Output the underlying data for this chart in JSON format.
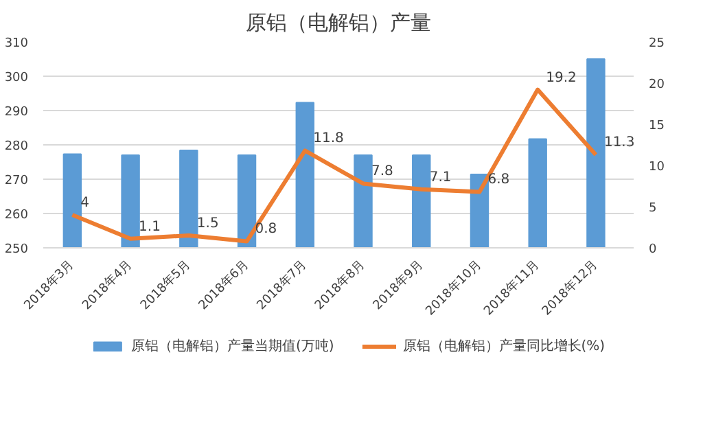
{
  "chart_data": {
    "type": "bar",
    "title": "原铝（电解铝）产量",
    "categories": [
      "2018年3月",
      "2018年4月",
      "2018年5月",
      "2018年6月",
      "2018年7月",
      "2018年8月",
      "2018年9月",
      "2018年10月",
      "2018年11月",
      "2018年12月"
    ],
    "series": [
      {
        "name": "原铝（电解铝）产量当期值(万吨)",
        "type": "bar",
        "color": "#5b9bd5",
        "values": [
          277.3,
          277,
          278.4,
          277,
          292.3,
          277,
          277,
          271.4,
          281.7,
          305
        ]
      },
      {
        "name": "原铝（电解铝）产量同比增长(%)",
        "type": "line",
        "axis": "y2",
        "color": "#ed7d31",
        "values": [
          4,
          1.1,
          1.5,
          0.8,
          11.8,
          7.8,
          7.1,
          6.8,
          19.2,
          11.3
        ],
        "value_labels": [
          "4",
          "1.1",
          "1.5",
          "0.8",
          "11.8",
          "7.8",
          "7.1",
          "6.8",
          "19.2",
          "11.3"
        ]
      }
    ],
    "ylim": [
      250,
      310
    ],
    "yticks": [
      250,
      260,
      270,
      280,
      290,
      300,
      310
    ],
    "y2lim": [
      0,
      25
    ],
    "y2ticks": [
      0,
      5,
      10,
      15,
      20,
      25
    ],
    "grid": "y",
    "legend": "bottom"
  }
}
